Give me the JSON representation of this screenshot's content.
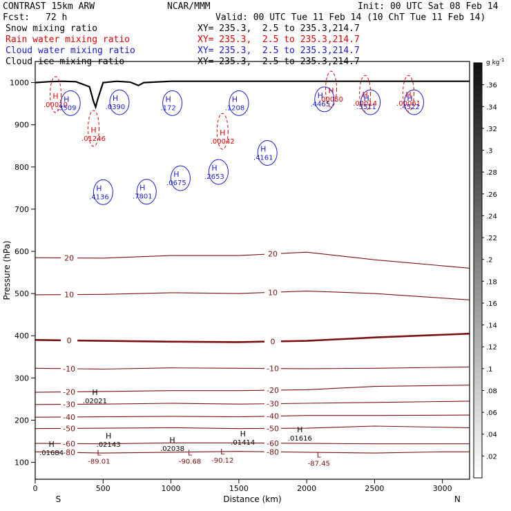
{
  "header": {
    "model": "CONTRAST 15km ARW",
    "center": "NCAR/MMM",
    "init": "Init: 00 UTC Sat 08 Feb 14",
    "fcst_label": "Fcst:",
    "fcst_value": "72 h",
    "valid": "Valid: 00 UTC Tue 11 Feb 14 (10 ChT Tue 11 Feb 14)"
  },
  "fields": [
    {
      "name": "Snow mixing ratio",
      "xy": "XY= 235.3,  2.5 to 235.3,214.7",
      "color": "#000000"
    },
    {
      "name": "Rain water mixing ratio",
      "xy": "XY= 235.3,  2.5 to 235.3,214.7",
      "color": "#dd0000"
    },
    {
      "name": "Cloud water mixing ratio",
      "xy": "XY= 235.3,  2.5 to 235.3,214.7",
      "color": "#1a1acc"
    },
    {
      "name": "Cloud ice mixing ratio",
      "xy": "XY= 235.3,  2.5 to 235.3,214.7",
      "color": "#000000"
    }
  ],
  "chart_data": {
    "type": "cross-section contour",
    "xlabel": "Distance (km)",
    "ylabel": "Pressure (hPa)",
    "xlim": [
      0,
      3200
    ],
    "ylim": [
      1050,
      60
    ],
    "x_ticks": [
      0,
      500,
      1000,
      1500,
      2000,
      2500,
      3000
    ],
    "y_ticks": [
      100,
      200,
      300,
      400,
      500,
      600,
      700,
      800,
      900,
      1000
    ],
    "left_end": "S",
    "right_end": "N",
    "colorbar": {
      "unit": "g kg",
      "unit_exp": "-1",
      "ticks": [
        ".02",
        ".04",
        ".06",
        ".08",
        ".1",
        ".12",
        ".14",
        ".16",
        ".18",
        ".2",
        ".22",
        ".24",
        ".26",
        ".28",
        ".3",
        ".32",
        ".34",
        ".36"
      ],
      "range": [
        0.0,
        0.38
      ]
    },
    "temperature_contours": [
      {
        "label": "-80",
        "p": [
          [
            0,
            125
          ],
          [
            500,
            122
          ],
          [
            1000,
            124
          ],
          [
            1500,
            126
          ],
          [
            2000,
            124
          ],
          [
            2500,
            122
          ],
          [
            3000,
            125
          ],
          [
            3200,
            125
          ]
        ]
      },
      {
        "label": "-60",
        "p": [
          [
            0,
            145
          ],
          [
            500,
            144
          ],
          [
            1000,
            146
          ],
          [
            1500,
            146
          ],
          [
            2000,
            145
          ],
          [
            2500,
            144
          ],
          [
            3200,
            144
          ]
        ]
      },
      {
        "label": "-50",
        "p": [
          [
            0,
            180
          ],
          [
            500,
            181
          ],
          [
            1000,
            182
          ],
          [
            1500,
            180
          ],
          [
            2000,
            181
          ],
          [
            2500,
            186
          ],
          [
            3200,
            182
          ]
        ]
      },
      {
        "label": "-40",
        "p": [
          [
            0,
            207
          ],
          [
            500,
            208
          ],
          [
            1000,
            209
          ],
          [
            1500,
            208
          ],
          [
            2000,
            211
          ],
          [
            2500,
            211
          ],
          [
            3200,
            212
          ]
        ]
      },
      {
        "label": "-30",
        "p": [
          [
            0,
            237
          ],
          [
            500,
            238
          ],
          [
            1000,
            240
          ],
          [
            1500,
            238
          ],
          [
            2000,
            240
          ],
          [
            2500,
            242
          ],
          [
            3200,
            245
          ]
        ]
      },
      {
        "label": "-20",
        "p": [
          [
            0,
            266
          ],
          [
            500,
            268
          ],
          [
            1000,
            270
          ],
          [
            1500,
            270
          ],
          [
            2000,
            272
          ],
          [
            2500,
            280
          ],
          [
            3200,
            283
          ]
        ]
      },
      {
        "label": "-10",
        "p": [
          [
            0,
            323
          ],
          [
            500,
            321
          ],
          [
            1000,
            324
          ],
          [
            1500,
            323
          ],
          [
            2000,
            322
          ],
          [
            2500,
            323
          ],
          [
            3200,
            326
          ]
        ]
      },
      {
        "label": "0",
        "p": [
          [
            0,
            390
          ],
          [
            500,
            388
          ],
          [
            1000,
            386
          ],
          [
            1500,
            385
          ],
          [
            2000,
            388
          ],
          [
            2500,
            396
          ],
          [
            3200,
            405
          ]
        ]
      },
      {
        "label": "10",
        "p": [
          [
            0,
            497
          ],
          [
            500,
            498
          ],
          [
            1000,
            502
          ],
          [
            1500,
            500
          ],
          [
            2000,
            506
          ],
          [
            2500,
            500
          ],
          [
            3200,
            485
          ]
        ]
      },
      {
        "label": "20",
        "p": [
          [
            0,
            585
          ],
          [
            500,
            584
          ],
          [
            1000,
            590
          ],
          [
            1500,
            590
          ],
          [
            2000,
            598
          ],
          [
            2500,
            580
          ],
          [
            3200,
            560
          ]
        ]
      }
    ],
    "snow_maxima": [
      {
        "x": 440,
        "p": 253,
        "value": ".02021"
      },
      {
        "x": 120,
        "p": 130,
        "value": ".01684"
      },
      {
        "x": 540,
        "p": 150,
        "value": ".02143"
      },
      {
        "x": 1010,
        "p": 140,
        "value": ".02038"
      },
      {
        "x": 1530,
        "p": 155,
        "value": ".01414"
      },
      {
        "x": 1950,
        "p": 165,
        "value": ".01616"
      }
    ],
    "cloud_ice_minima_maxima": [
      {
        "x": 470,
        "p": 110,
        "value": "-89.01"
      },
      {
        "x": 1140,
        "p": 110,
        "value": "-90.68"
      },
      {
        "x": 1380,
        "p": 112,
        "value": "-90.12"
      },
      {
        "x": 2090,
        "p": 105,
        "value": "-87.45"
      }
    ],
    "rain_maxima": [
      {
        "x": 430,
        "p": 875,
        "value": ".01246"
      },
      {
        "x": 150,
        "p": 955,
        "value": ".00010"
      },
      {
        "x": 1380,
        "p": 868,
        "value": ".00042"
      },
      {
        "x": 2180,
        "p": 968,
        "value": ".00050"
      },
      {
        "x": 2430,
        "p": 958,
        "value": ".00014"
      },
      {
        "x": 2750,
        "p": 958,
        "value": ".00061"
      }
    ],
    "cloud_water_maxima": [
      {
        "x": 470,
        "p": 737,
        "value": ".4136"
      },
      {
        "x": 790,
        "p": 738,
        "value": ".7801"
      },
      {
        "x": 1320,
        "p": 785,
        "value": ".2653"
      },
      {
        "x": 1680,
        "p": 830,
        "value": ".4161"
      },
      {
        "x": 1040,
        "p": 770,
        "value": ".0675"
      },
      {
        "x": 230,
        "p": 948,
        "value": ".3509"
      },
      {
        "x": 590,
        "p": 950,
        "value": ".0390"
      },
      {
        "x": 980,
        "p": 948,
        "value": ".172"
      },
      {
        "x": 1470,
        "p": 948,
        "value": ".1208"
      },
      {
        "x": 2100,
        "p": 957,
        "value": ".4465"
      },
      {
        "x": 2440,
        "p": 950,
        "value": ".5511"
      },
      {
        "x": 2760,
        "p": 950,
        "value": ".4522"
      }
    ],
    "terrain": [
      [
        0,
        1000
      ],
      [
        100,
        1002
      ],
      [
        200,
        1003
      ],
      [
        300,
        1002
      ],
      [
        400,
        990
      ],
      [
        430,
        955
      ],
      [
        445,
        942
      ],
      [
        460,
        960
      ],
      [
        500,
        1000
      ],
      [
        600,
        1003
      ],
      [
        700,
        1001
      ],
      [
        760,
        993
      ],
      [
        800,
        1000
      ],
      [
        1000,
        1003
      ],
      [
        1500,
        1003
      ],
      [
        2000,
        1003
      ],
      [
        2500,
        1003
      ],
      [
        3000,
        1003
      ],
      [
        3200,
        1003
      ]
    ]
  }
}
